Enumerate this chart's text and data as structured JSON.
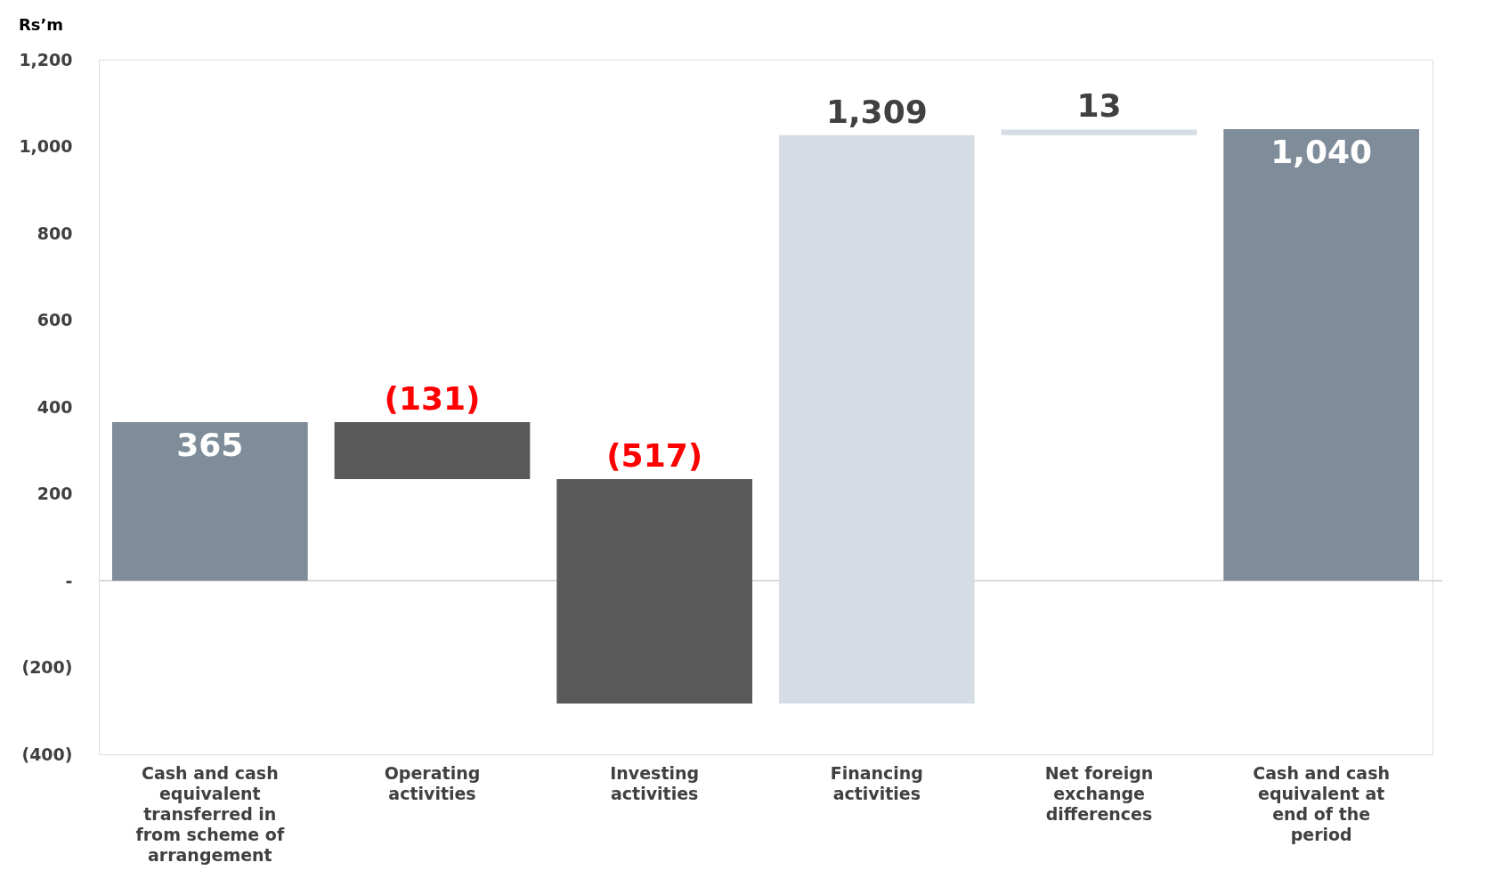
{
  "chart_data": {
    "type": "bar",
    "ylabel": "Rs’m",
    "categories": [
      "Cash and cash equivalent transferred in from scheme of arrangement",
      "Operating activities",
      "Investing activities",
      "Financing activities",
      "Net foreign exchange differences",
      "Cash and cash equivalent at end of the period"
    ],
    "values": [
      365,
      -131,
      -517,
      1309,
      13,
      1040
    ],
    "base": [
      0,
      365,
      234,
      -283,
      1026,
      0
    ],
    "colors": [
      "#7f8c99",
      "#595959",
      "#595959",
      "#d6dce4",
      "#d6dce4",
      "#7f8c99"
    ],
    "value_labels": [
      "365",
      "(131)",
      "(517)",
      "1,309",
      "13",
      "1,040"
    ],
    "ylim": [
      -400,
      1200
    ],
    "yticks": [
      {
        "value": -400,
        "label": "(400)"
      },
      {
        "value": -200,
        "label": "(200)"
      },
      {
        "value": 0,
        "label": "-"
      },
      200,
      400,
      600,
      800,
      {
        "value": 1000,
        "label": "1,000"
      },
      {
        "value": 1200,
        "label": "1,200"
      }
    ],
    "ref_lines": [
      {
        "axis": "y",
        "value": 0,
        "color": "#d9d9d9"
      }
    ],
    "grid": false
  }
}
